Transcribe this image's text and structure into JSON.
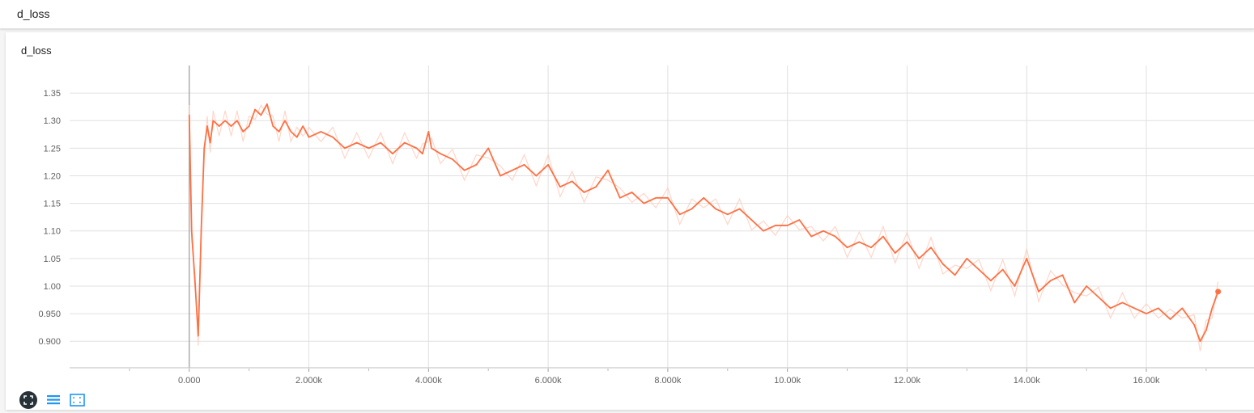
{
  "header": {
    "title": "d_loss"
  },
  "card": {
    "title": "d_loss"
  },
  "icons": [
    "fullscreen-icon",
    "list-icon",
    "fit-domain-icon"
  ],
  "colors": {
    "line": "#ff7043",
    "raw_line": "#ffccbc",
    "marker": "#ff7043",
    "grid": "#e0e0e0",
    "toolbar_dark": "#263238",
    "toolbar_blue": "#2196f3"
  },
  "chart_data": {
    "type": "line",
    "title": "",
    "xlabel": "",
    "ylabel": "",
    "xlim": [
      -2000,
      17800
    ],
    "ylim": [
      0.852,
      1.4
    ],
    "grid": true,
    "x_ticks": [
      0,
      2000,
      4000,
      6000,
      8000,
      10000,
      12000,
      14000,
      16000
    ],
    "x_tick_labels": [
      "0.000",
      "2.000k",
      "4.000k",
      "6.000k",
      "8.000k",
      "10.00k",
      "12.00k",
      "14.00k",
      "16.00k"
    ],
    "y_ticks": [
      0.9,
      0.95,
      1.0,
      1.05,
      1.1,
      1.15,
      1.2,
      1.25,
      1.3,
      1.35
    ],
    "y_tick_labels": [
      "0.900",
      "0.950",
      "1.00",
      "1.05",
      "1.10",
      "1.15",
      "1.20",
      "1.25",
      "1.30",
      "1.35"
    ],
    "series": [
      {
        "x": [
          0,
          40,
          100,
          150,
          200,
          250,
          300,
          350,
          400,
          500,
          600,
          700,
          800,
          900,
          1000,
          1100,
          1200,
          1300,
          1400,
          1500,
          1600,
          1700,
          1800,
          1900,
          2000,
          2200,
          2400,
          2600,
          2800,
          3000,
          3200,
          3400,
          3600,
          3800,
          3900,
          4000,
          4050,
          4200,
          4400,
          4600,
          4800,
          5000,
          5200,
          5400,
          5600,
          5800,
          6000,
          6200,
          6400,
          6600,
          6800,
          7000,
          7200,
          7400,
          7600,
          7800,
          8000,
          8200,
          8400,
          8600,
          8800,
          9000,
          9200,
          9400,
          9600,
          9800,
          10000,
          10200,
          10400,
          10600,
          10800,
          11000,
          11200,
          11400,
          11600,
          11800,
          12000,
          12200,
          12400,
          12600,
          12800,
          13000,
          13200,
          13400,
          13600,
          13800,
          14000,
          14200,
          14400,
          14600,
          14800,
          15000,
          15200,
          15400,
          15600,
          15800,
          16000,
          16200,
          16400,
          16600,
          16800,
          16900,
          17000,
          17100,
          17200
        ],
        "values": [
          1.31,
          1.1,
          1.0,
          0.91,
          1.1,
          1.25,
          1.29,
          1.26,
          1.3,
          1.29,
          1.3,
          1.29,
          1.3,
          1.28,
          1.29,
          1.32,
          1.31,
          1.33,
          1.29,
          1.28,
          1.3,
          1.28,
          1.27,
          1.29,
          1.27,
          1.28,
          1.27,
          1.25,
          1.26,
          1.25,
          1.26,
          1.24,
          1.26,
          1.25,
          1.24,
          1.28,
          1.25,
          1.24,
          1.23,
          1.21,
          1.22,
          1.25,
          1.2,
          1.21,
          1.22,
          1.2,
          1.22,
          1.18,
          1.19,
          1.17,
          1.18,
          1.21,
          1.16,
          1.17,
          1.15,
          1.16,
          1.16,
          1.13,
          1.14,
          1.16,
          1.14,
          1.13,
          1.14,
          1.12,
          1.1,
          1.11,
          1.11,
          1.12,
          1.09,
          1.1,
          1.09,
          1.07,
          1.08,
          1.07,
          1.09,
          1.06,
          1.08,
          1.05,
          1.07,
          1.04,
          1.02,
          1.05,
          1.03,
          1.01,
          1.03,
          1.0,
          1.05,
          0.99,
          1.01,
          1.02,
          0.97,
          1.0,
          0.98,
          0.96,
          0.97,
          0.96,
          0.95,
          0.96,
          0.94,
          0.96,
          0.93,
          0.9,
          0.92,
          0.96,
          0.99
        ]
      }
    ],
    "last_point": {
      "x": 17200,
      "y": 0.99
    }
  }
}
